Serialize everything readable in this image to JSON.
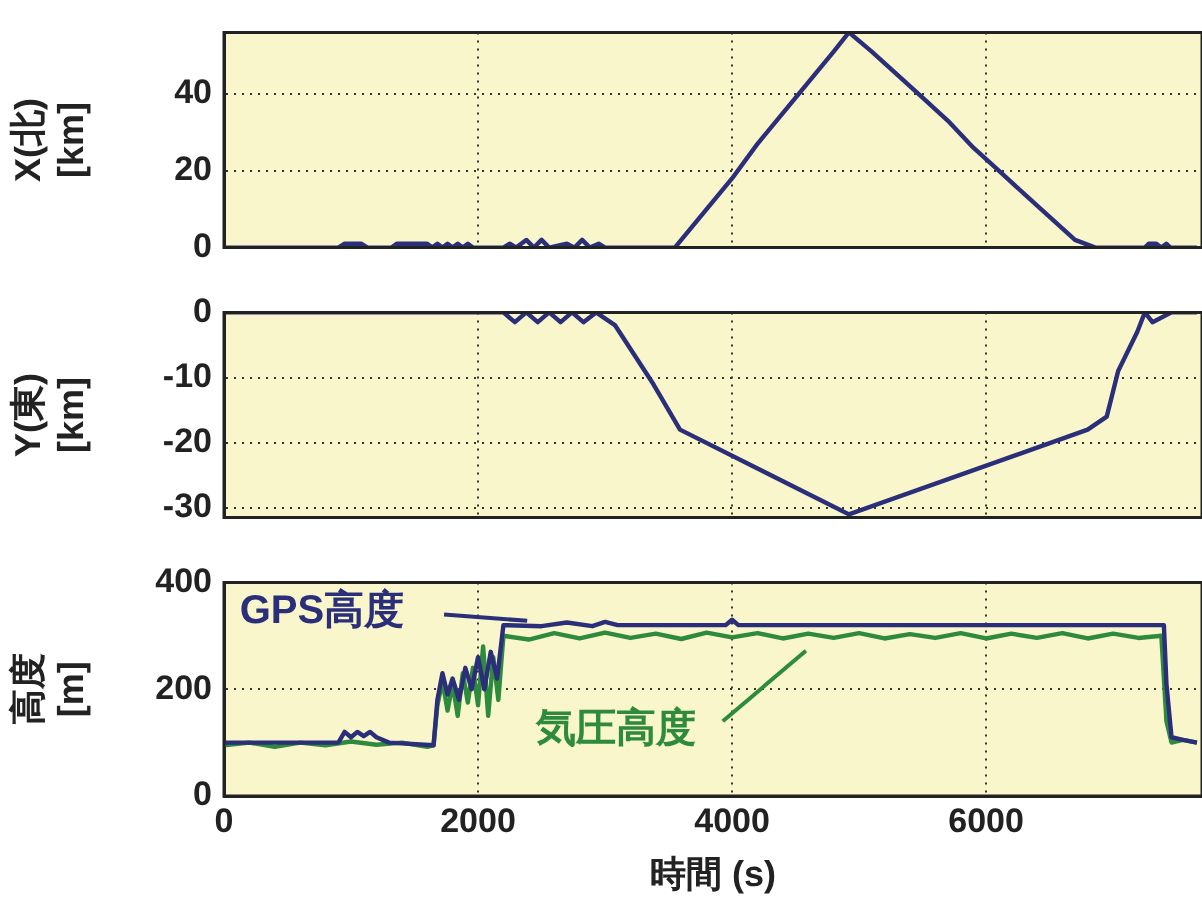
{
  "chart_data": [
    {
      "type": "line",
      "ylabel": "X(北)\n[km]",
      "xlim": [
        0,
        7700
      ],
      "xticks": [
        0,
        2000,
        4000,
        6000
      ],
      "ylim": [
        0,
        56
      ],
      "yticks": [
        0,
        20,
        40
      ],
      "grid": true,
      "tick_labels": "y",
      "marker": "none",
      "line_style": "solid",
      "series": [
        {
          "color": "#2b2f7a",
          "x": [
            0,
            900,
            950,
            1080,
            1130,
            1320,
            1360,
            1600,
            1640,
            1680,
            1720,
            1760,
            1800,
            1840,
            1880,
            1920,
            1960,
            2200,
            2250,
            2300,
            2380,
            2440,
            2500,
            2560,
            2700,
            2760,
            2820,
            2880,
            2950,
            3000,
            3550,
            3600,
            3800,
            4000,
            4200,
            4400,
            4600,
            4800,
            4920,
            5100,
            5300,
            5500,
            5700,
            5900,
            6100,
            6300,
            6500,
            6700,
            6860,
            7250,
            7280,
            7340,
            7380,
            7420,
            7450,
            7660
          ],
          "values": [
            0,
            0,
            1,
            1,
            0,
            0,
            1,
            1,
            0,
            1,
            0,
            1,
            0,
            1,
            0,
            1,
            0,
            0,
            1,
            0,
            2,
            0,
            2,
            0,
            1,
            0,
            2,
            0,
            1,
            0,
            0,
            2,
            10,
            18,
            27,
            35,
            43,
            51,
            56,
            51,
            45,
            39,
            33,
            26,
            20,
            14,
            8,
            2,
            0,
            0,
            1,
            1,
            0,
            1,
            0,
            0
          ]
        }
      ]
    },
    {
      "type": "line",
      "ylabel": "Y(東)\n[km]",
      "xlim": [
        0,
        7700
      ],
      "xticks": [
        0,
        2000,
        4000,
        6000
      ],
      "ylim": [
        -31.5,
        0
      ],
      "yticks": [
        -30,
        -20,
        -10,
        0
      ],
      "grid": true,
      "tick_labels": "y",
      "marker": "none",
      "line_style": "solid",
      "series": [
        {
          "color": "#2b2f7a",
          "x": [
            0,
            2200,
            2290,
            2380,
            2470,
            2560,
            2650,
            2740,
            2830,
            2930,
            3080,
            3380,
            3590,
            4920,
            6800,
            6950,
            7040,
            7190,
            7250,
            7310,
            7460,
            7660
          ],
          "values": [
            0,
            0,
            -1.5,
            0,
            -1.5,
            0,
            -1.5,
            0,
            -1.5,
            0,
            -2,
            -11,
            -18,
            -31,
            -18,
            -16,
            -9,
            -3,
            0,
            -1.5,
            0,
            0
          ]
        }
      ]
    },
    {
      "type": "line",
      "ylabel": "高度\n[m]",
      "xlabel": "時間 (s)",
      "xlim": [
        0,
        7700
      ],
      "xticks": [
        0,
        2000,
        4000,
        6000
      ],
      "ylim": [
        0,
        400
      ],
      "yticks": [
        0,
        200,
        400
      ],
      "grid": true,
      "legend": "top left",
      "marker": "none",
      "line_style": "solid",
      "series": [
        {
          "name": "GPS高度",
          "color": "#2b2f7a",
          "x": [
            0,
            900,
            950,
            1000,
            1050,
            1100,
            1150,
            1200,
            1300,
            1650,
            1680,
            1720,
            1760,
            1800,
            1850,
            1900,
            1950,
            2000,
            2050,
            2100,
            2150,
            2200,
            2500,
            2700,
            2900,
            3000,
            3100,
            3950,
            4000,
            4050,
            7400,
            7420,
            7460,
            7550,
            7660
          ],
          "values": [
            100,
            100,
            120,
            110,
            120,
            112,
            120,
            110,
            100,
            95,
            180,
            230,
            190,
            220,
            180,
            240,
            200,
            260,
            200,
            270,
            220,
            320,
            318,
            325,
            318,
            326,
            320,
            320,
            330,
            320,
            320,
            210,
            110,
            105,
            100
          ]
        },
        {
          "name": "気圧高度",
          "color": "#2e8b3e",
          "x": [
            0,
            200,
            400,
            600,
            800,
            1000,
            1200,
            1400,
            1600,
            1650,
            1680,
            1720,
            1760,
            1800,
            1840,
            1880,
            1920,
            1960,
            2000,
            2040,
            2080,
            2120,
            2160,
            2200,
            2400,
            2600,
            2800,
            3000,
            3200,
            3400,
            3600,
            3800,
            4000,
            4200,
            4400,
            4600,
            4800,
            5000,
            5200,
            5400,
            5600,
            5800,
            6000,
            6200,
            6400,
            6600,
            6800,
            7000,
            7200,
            7380,
            7420,
            7460,
            7550,
            7660
          ],
          "values": [
            95,
            100,
            92,
            100,
            95,
            102,
            96,
            100,
            92,
            95,
            170,
            215,
            160,
            210,
            150,
            230,
            175,
            240,
            170,
            280,
            150,
            260,
            180,
            300,
            293,
            305,
            295,
            306,
            296,
            304,
            294,
            306,
            297,
            305,
            295,
            304,
            296,
            305,
            295,
            303,
            296,
            305,
            295,
            304,
            296,
            305,
            295,
            304,
            296,
            300,
            140,
            100,
            105,
            100
          ]
        }
      ]
    }
  ]
}
